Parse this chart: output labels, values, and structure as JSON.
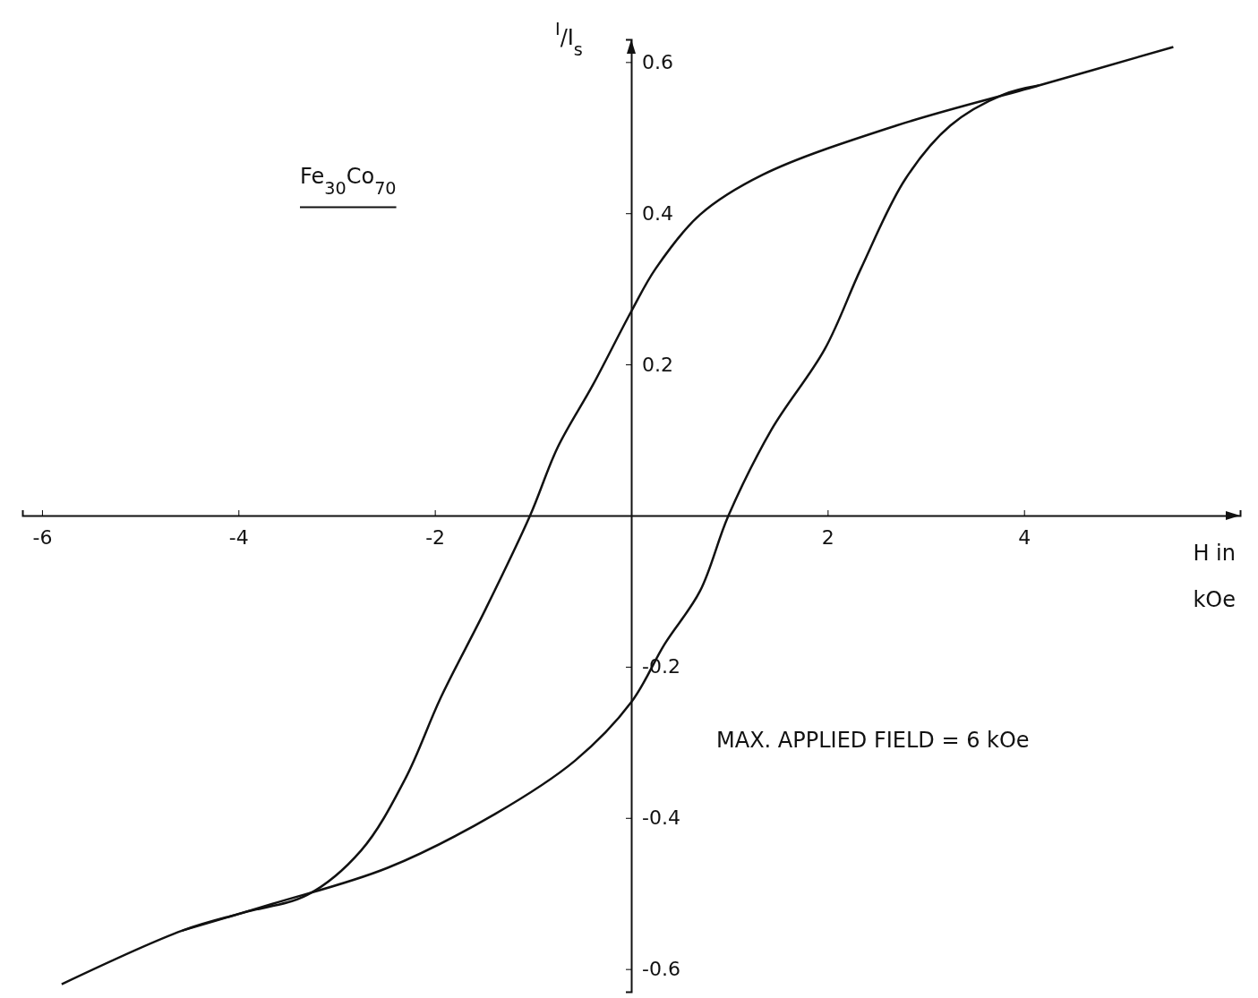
{
  "chart_data": {
    "type": "line",
    "xlabel": "H in kOe",
    "ylabel": "$^{I}$/I$_{s}$",
    "annotations": [
      "Fe$_{30}$Co$_{70}$",
      "MAX. APPLIED FIELD = 6 kOe"
    ],
    "xlim": [
      -6.2,
      6.2
    ],
    "ylim": [
      -0.63,
      0.63
    ],
    "xticks": [
      -6,
      -4,
      -2,
      2,
      4
    ],
    "yticks": [
      0.6,
      0.4,
      0.2,
      -0.2,
      -0.4,
      -0.6
    ],
    "grid": false,
    "marker": "none",
    "line_style": "solid",
    "series": [
      {
        "color": "#111111",
        "x": [
          5.52,
          4.15,
          2.7,
          1.34,
          0.7,
          0.25,
          0,
          -0.39,
          -0.75,
          -1.03,
          -1.48,
          -1.94,
          -2.3,
          -2.75,
          -3.3,
          -3.94,
          -4.57,
          -5.8
        ],
        "values": [
          0.62,
          0.569,
          0.516,
          0.451,
          0.398,
          0.327,
          0.27,
          0.173,
          0.09,
          0,
          -0.123,
          -0.241,
          -0.348,
          -0.443,
          -0.502,
          -0.525,
          -0.549,
          -0.62
        ]
      },
      {
        "color": "#111111",
        "x": [
          -4.57,
          -3.66,
          -2.48,
          -1.39,
          -0.57,
          0,
          0.34,
          0.7,
          0.99,
          1.43,
          1.97,
          2.34,
          2.79,
          3.25,
          3.79,
          4.15
        ],
        "values": [
          -0.549,
          -0.514,
          -0.466,
          -0.395,
          -0.324,
          -0.247,
          -0.17,
          -0.1,
          0,
          0.114,
          0.22,
          0.327,
          0.445,
          0.516,
          0.557,
          0.569
        ]
      }
    ]
  }
}
